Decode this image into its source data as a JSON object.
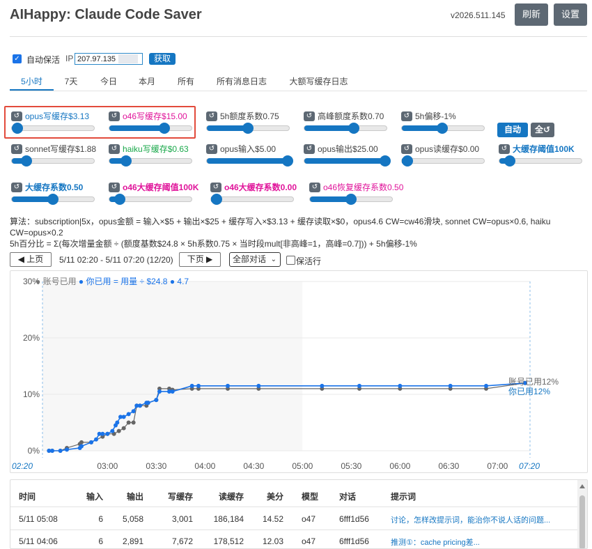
{
  "header": {
    "title": "AIHappy: Claude Code Saver",
    "version": "v2026.511.145",
    "refresh_label": "刷新",
    "settings_label": "设置"
  },
  "keepalive": {
    "checkbox_label": "自动保活",
    "checked": true,
    "ip_label": "IP",
    "ip_value": "207.97.135",
    "fetch_label": "获取"
  },
  "tabs": [
    "5小时",
    "7天",
    "今日",
    "本月",
    "所有",
    "所有消息日志",
    "大额写缓存日志"
  ],
  "controls": [
    {
      "label": "opus写缓存$3.13",
      "color": "#1576c2",
      "bold": false,
      "value": 0.07
    },
    {
      "label": "o46写缓存$15.00",
      "color": "#e0139a",
      "bold": false,
      "value": 0.67
    },
    {
      "label": "5h额度系数0.75",
      "color": "#444444",
      "bold": false,
      "value": 0.5
    },
    {
      "label": "高峰额度系数0.70",
      "color": "#444444",
      "bold": false,
      "value": 0.6
    },
    {
      "label": "5h偏移-1%",
      "color": "#444444",
      "bold": false,
      "value": 0.49
    },
    {
      "label": "sonnet写缓存$1.88",
      "color": "#444444",
      "bold": false,
      "value": 0.18
    },
    {
      "label": "haiku写缓存$0.63",
      "color": "#19a84a",
      "bold": false,
      "value": 0.2
    },
    {
      "label": "opus输入$5.00",
      "color": "#444444",
      "bold": false,
      "value": 0.98
    },
    {
      "label": "opus输出$25.00",
      "color": "#444444",
      "bold": false,
      "value": 0.98
    },
    {
      "label": "opus读缓存$0.00",
      "color": "#444444",
      "bold": false,
      "value": 0.0
    },
    {
      "label": "大缓存阈值100K",
      "color": "#1576c2",
      "bold": true,
      "value": 0.13
    },
    {
      "label": "大缓存系数0.50",
      "color": "#1576c2",
      "bold": true,
      "value": 0.5
    },
    {
      "label": "o46大缓存阈值100K",
      "color": "#e0139a",
      "bold": true,
      "value": 0.13
    },
    {
      "label": "o46大缓存系数0.00",
      "color": "#e0139a",
      "bold": true,
      "value": 0.0
    },
    {
      "label": "o46恢复缓存系数0.50",
      "color": "#e0139a",
      "bold": false,
      "value": 0.5
    }
  ],
  "buttons": {
    "auto_label": "自动",
    "all_label": "全↺"
  },
  "formula": {
    "line1": "算法：subscription|5x，opus金额 = 输入×$5 + 输出×$25 + 缓存写入×$3.13 + 缓存读取×$0，opus4.6 CW=cw46滑块, sonnet CW=opus×0.6, haiku CW=opus×0.2",
    "line2": "5h百分比 = Σ(每次增量金额 ÷ (额度基数$24.8 × 5h系数0.75 × 当时段mult[非高峰=1，高峰=0.7])) + 5h偏移-1%"
  },
  "pager": {
    "prev_label": "◀ 上页",
    "range": "5/11 02:20 - 5/11 07:20 (12/20)",
    "next_label": "下页 ▶",
    "select_value": "全部对话",
    "keepalive_rows_label": "保活行"
  },
  "chart_data": {
    "type": "line",
    "legend": "● 账号已用 ● 你已用 = 用量 ÷ $24.8 ● 4.7",
    "y_ticks": [
      "30%",
      "20%",
      "10%",
      "0%"
    ],
    "ylim": [
      0,
      30
    ],
    "x_start_label": "02:20",
    "x_end_label": "07:20",
    "x_ticks": [
      "03:00",
      "03:30",
      "04:00",
      "04:30",
      "05:00",
      "05:30",
      "06:00",
      "06:30",
      "07:00"
    ],
    "x_range_minutes": [
      140,
      440
    ],
    "end_labels": {
      "account": "账号已用12%",
      "you": "你已用12%"
    },
    "series": [
      {
        "name": "账号已用",
        "color": "#666666",
        "x": [
          144,
          146,
          151,
          155,
          163,
          164,
          170,
          177,
          180,
          184,
          187,
          190,
          193,
          196,
          198,
          200,
          204,
          205,
          210,
          212,
          218,
          220,
          232,
          236,
          254,
          273,
          312,
          335,
          360,
          391,
          413,
          437
        ],
        "y": [
          0,
          0,
          0,
          0.5,
          1.2,
          1.5,
          1.5,
          2.5,
          3,
          3,
          3.5,
          4,
          5,
          5,
          8,
          8,
          8,
          8.5,
          9,
          11,
          11,
          10.8,
          11,
          11,
          11,
          11,
          11,
          11,
          11,
          11,
          11,
          12
        ]
      },
      {
        "name": "你已用",
        "color": "#1a73e8",
        "x": [
          144,
          146,
          151,
          155,
          163,
          164,
          170,
          173,
          175,
          177,
          180,
          183,
          185,
          186,
          188,
          190,
          193,
          196,
          198,
          200,
          204,
          205,
          210,
          212,
          218,
          220,
          232,
          236,
          254,
          273,
          312,
          335,
          360,
          391,
          413,
          437
        ],
        "y": [
          0,
          0,
          0,
          0.2,
          0.5,
          0.8,
          1.5,
          2,
          3,
          3,
          3,
          3.5,
          4.5,
          5,
          6,
          6,
          6.5,
          7,
          8,
          8,
          8.5,
          8.5,
          9,
          10.5,
          10.5,
          10.5,
          11.5,
          11.5,
          11.5,
          11.5,
          11.5,
          11.5,
          11.5,
          11.5,
          11.5,
          12
        ]
      }
    ]
  },
  "table": {
    "headers": [
      "时间",
      "输入",
      "输出",
      "写缓存",
      "读缓存",
      "美分",
      "模型",
      "对话",
      "提示词"
    ],
    "rows": [
      [
        "5/11 05:08",
        "6",
        "5,058",
        "3,001",
        "186,184",
        "14.52",
        "o47",
        "6fff1d56",
        "讨论，怎样改提示词，能治你不说人话的问题..."
      ],
      [
        "5/11 04:06",
        "6",
        "2,891",
        "7,672",
        "178,512",
        "12.03",
        "o47",
        "6fff1d56",
        "推测①：cache pricing差..."
      ]
    ]
  }
}
